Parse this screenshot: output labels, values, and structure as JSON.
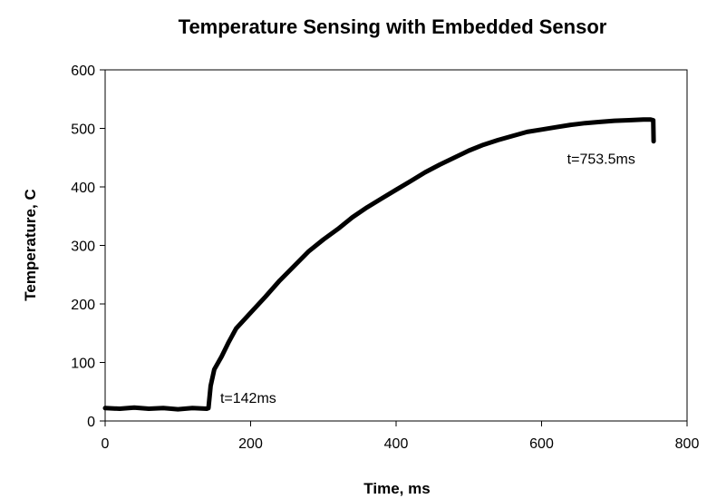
{
  "chart_data": {
    "type": "line",
    "title": "Temperature Sensing with Embedded Sensor",
    "xlabel": "Time, ms",
    "ylabel": "Temperature, C",
    "xlim": [
      0,
      800
    ],
    "ylim": [
      0,
      600
    ],
    "xticks": [
      0,
      200,
      400,
      600,
      800
    ],
    "yticks": [
      0,
      100,
      200,
      300,
      400,
      500,
      600
    ],
    "grid": false,
    "legend": "none",
    "line_color": "#000000",
    "series": [
      {
        "x": [
          0,
          20,
          40,
          60,
          80,
          100,
          120,
          140,
          142,
          145,
          150,
          160,
          170,
          180,
          200,
          220,
          240,
          260,
          280,
          300,
          320,
          340,
          360,
          380,
          400,
          420,
          440,
          460,
          480,
          500,
          520,
          540,
          560,
          580,
          600,
          620,
          640,
          660,
          680,
          700,
          720,
          740,
          750,
          753.5,
          754
        ],
        "y": [
          22,
          21,
          23,
          21,
          22,
          20,
          22,
          21,
          22,
          60,
          88,
          110,
          135,
          158,
          185,
          212,
          240,
          265,
          290,
          310,
          328,
          348,
          365,
          380,
          395,
          410,
          425,
          438,
          450,
          462,
          472,
          480,
          487,
          494,
          498,
          502,
          506,
          509,
          511,
          513,
          514,
          515,
          515,
          514,
          478
        ]
      }
    ],
    "annotations": [
      {
        "text": "t=142ms",
        "x": 142,
        "y": 22
      },
      {
        "text": "t=753.5ms",
        "x": 753.5,
        "y": 478
      }
    ]
  }
}
